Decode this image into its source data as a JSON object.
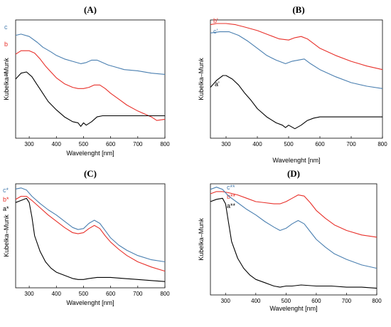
{
  "colors": {
    "a": "#000000",
    "b": "#e8302a",
    "c": "#4a7fb0"
  },
  "chart_data": [
    {
      "type": "line",
      "title": "(A)",
      "xlabel": "Wavelenght [nm]",
      "ylabel": "Kubelka–Munk",
      "xlim": [
        250,
        800
      ],
      "ylim": [
        0,
        1
      ],
      "xticks": [
        300,
        400,
        500,
        600,
        700,
        800
      ],
      "grid": false,
      "series": [
        {
          "name": "c",
          "color_key": "c",
          "x": [
            250,
            270,
            300,
            330,
            350,
            380,
            400,
            430,
            460,
            490,
            510,
            530,
            550,
            570,
            590,
            620,
            650,
            700,
            750,
            800
          ],
          "y": [
            0.87,
            0.88,
            0.86,
            0.81,
            0.77,
            0.73,
            0.7,
            0.67,
            0.65,
            0.63,
            0.64,
            0.66,
            0.66,
            0.64,
            0.62,
            0.6,
            0.58,
            0.57,
            0.55,
            0.54
          ]
        },
        {
          "name": "b",
          "color_key": "b",
          "x": [
            250,
            270,
            300,
            320,
            340,
            360,
            380,
            400,
            430,
            460,
            480,
            500,
            520,
            540,
            560,
            580,
            600,
            630,
            660,
            700,
            750,
            770,
            800
          ],
          "y": [
            0.71,
            0.74,
            0.74,
            0.72,
            0.67,
            0.61,
            0.56,
            0.51,
            0.46,
            0.43,
            0.42,
            0.42,
            0.43,
            0.45,
            0.45,
            0.42,
            0.38,
            0.33,
            0.28,
            0.23,
            0.18,
            0.15,
            0.16
          ]
        },
        {
          "name": "a",
          "color_key": "a",
          "x": [
            250,
            270,
            290,
            310,
            330,
            350,
            370,
            400,
            430,
            460,
            480,
            490,
            500,
            510,
            530,
            550,
            570,
            600,
            650,
            700,
            750,
            800
          ],
          "y": [
            0.5,
            0.55,
            0.56,
            0.52,
            0.45,
            0.38,
            0.31,
            0.24,
            0.18,
            0.14,
            0.13,
            0.1,
            0.13,
            0.11,
            0.14,
            0.18,
            0.19,
            0.19,
            0.19,
            0.19,
            0.19,
            0.19
          ]
        }
      ]
    },
    {
      "type": "line",
      "title": "(B)",
      "xlabel": "Wavelenght [nm]",
      "ylabel": "Kubelka–Munk",
      "xlim": [
        250,
        800
      ],
      "ylim": [
        0,
        1
      ],
      "xticks": [
        300,
        400,
        500,
        600,
        700,
        800
      ],
      "grid": false,
      "series": [
        {
          "name": "b'",
          "color_key": "b",
          "x": [
            250,
            270,
            300,
            330,
            360,
            400,
            440,
            470,
            500,
            520,
            540,
            560,
            580,
            600,
            650,
            700,
            750,
            800
          ],
          "y": [
            0.96,
            0.97,
            0.97,
            0.96,
            0.94,
            0.91,
            0.87,
            0.84,
            0.83,
            0.85,
            0.86,
            0.84,
            0.8,
            0.76,
            0.7,
            0.65,
            0.61,
            0.58
          ]
        },
        {
          "name": "c'",
          "color_key": "c",
          "x": [
            250,
            280,
            310,
            340,
            370,
            400,
            430,
            460,
            490,
            510,
            530,
            550,
            570,
            600,
            650,
            700,
            750,
            800
          ],
          "y": [
            0.89,
            0.9,
            0.9,
            0.87,
            0.82,
            0.76,
            0.7,
            0.66,
            0.63,
            0.65,
            0.66,
            0.67,
            0.63,
            0.58,
            0.52,
            0.47,
            0.44,
            0.42
          ]
        },
        {
          "name": "a'",
          "color_key": "a",
          "x": [
            250,
            270,
            290,
            300,
            320,
            340,
            360,
            380,
            400,
            430,
            460,
            480,
            490,
            500,
            520,
            540,
            560,
            580,
            600,
            650,
            700,
            750,
            800
          ],
          "y": [
            0.43,
            0.49,
            0.53,
            0.53,
            0.5,
            0.45,
            0.38,
            0.32,
            0.25,
            0.18,
            0.13,
            0.11,
            0.09,
            0.11,
            0.08,
            0.11,
            0.15,
            0.17,
            0.18,
            0.18,
            0.18,
            0.18,
            0.18
          ]
        }
      ]
    },
    {
      "type": "line",
      "title": "(C)",
      "xlabel": "Wavelenght [nm]",
      "ylabel": "Kubelka–Munk",
      "xlim": [
        250,
        800
      ],
      "ylim": [
        0,
        1
      ],
      "xticks": [
        300,
        400,
        500,
        600,
        700,
        800
      ],
      "grid": false,
      "series": [
        {
          "name": "c*",
          "color_key": "c",
          "x": [
            250,
            270,
            290,
            310,
            340,
            370,
            400,
            430,
            460,
            480,
            500,
            520,
            540,
            560,
            580,
            600,
            630,
            660,
            700,
            750,
            800
          ],
          "y": [
            0.95,
            0.96,
            0.94,
            0.88,
            0.81,
            0.75,
            0.7,
            0.64,
            0.58,
            0.56,
            0.57,
            0.62,
            0.65,
            0.62,
            0.55,
            0.48,
            0.41,
            0.36,
            0.31,
            0.27,
            0.25
          ]
        },
        {
          "name": "b*",
          "color_key": "b",
          "x": [
            250,
            270,
            290,
            310,
            340,
            370,
            400,
            430,
            460,
            480,
            500,
            520,
            540,
            560,
            580,
            600,
            630,
            660,
            700,
            750,
            800
          ],
          "y": [
            0.85,
            0.88,
            0.88,
            0.84,
            0.77,
            0.7,
            0.64,
            0.58,
            0.53,
            0.52,
            0.53,
            0.57,
            0.6,
            0.57,
            0.5,
            0.44,
            0.37,
            0.31,
            0.25,
            0.2,
            0.16
          ]
        },
        {
          "name": "a*",
          "color_key": "a",
          "x": [
            250,
            270,
            290,
            300,
            310,
            320,
            340,
            360,
            380,
            400,
            430,
            460,
            480,
            500,
            520,
            550,
            600,
            650,
            700,
            750,
            800
          ],
          "y": [
            0.82,
            0.84,
            0.86,
            0.82,
            0.68,
            0.5,
            0.35,
            0.25,
            0.19,
            0.15,
            0.12,
            0.09,
            0.08,
            0.08,
            0.09,
            0.1,
            0.1,
            0.09,
            0.08,
            0.07,
            0.06
          ]
        }
      ]
    },
    {
      "type": "line",
      "title": "(D)",
      "xlabel": "Wavelenght [nm]",
      "ylabel": "Kubelka–Munk",
      "xlim": [
        250,
        800
      ],
      "ylim": [
        0,
        1
      ],
      "xticks": [
        300,
        400,
        500,
        600,
        700,
        800
      ],
      "grid": false,
      "series": [
        {
          "name": "b**",
          "color_key": "b",
          "x": [
            250,
            270,
            290,
            310,
            340,
            370,
            400,
            430,
            460,
            480,
            500,
            520,
            540,
            560,
            580,
            600,
            630,
            660,
            700,
            750,
            800
          ],
          "y": [
            0.91,
            0.93,
            0.93,
            0.92,
            0.9,
            0.87,
            0.84,
            0.83,
            0.82,
            0.82,
            0.84,
            0.87,
            0.9,
            0.89,
            0.83,
            0.76,
            0.69,
            0.63,
            0.58,
            0.54,
            0.52
          ]
        },
        {
          "name": "c**",
          "color_key": "c",
          "x": [
            250,
            270,
            290,
            310,
            340,
            370,
            400,
            430,
            460,
            480,
            500,
            520,
            540,
            560,
            580,
            600,
            630,
            660,
            700,
            750,
            800
          ],
          "y": [
            0.95,
            0.97,
            0.95,
            0.89,
            0.83,
            0.77,
            0.72,
            0.66,
            0.61,
            0.58,
            0.6,
            0.64,
            0.67,
            0.64,
            0.57,
            0.5,
            0.43,
            0.37,
            0.32,
            0.27,
            0.24
          ]
        },
        {
          "name": "a**",
          "color_key": "a",
          "x": [
            250,
            270,
            290,
            300,
            310,
            320,
            340,
            360,
            380,
            400,
            430,
            460,
            480,
            500,
            520,
            550,
            600,
            650,
            700,
            750,
            800
          ],
          "y": [
            0.84,
            0.86,
            0.87,
            0.82,
            0.65,
            0.48,
            0.33,
            0.24,
            0.18,
            0.14,
            0.11,
            0.08,
            0.07,
            0.08,
            0.08,
            0.09,
            0.08,
            0.08,
            0.07,
            0.07,
            0.06
          ]
        }
      ]
    }
  ]
}
